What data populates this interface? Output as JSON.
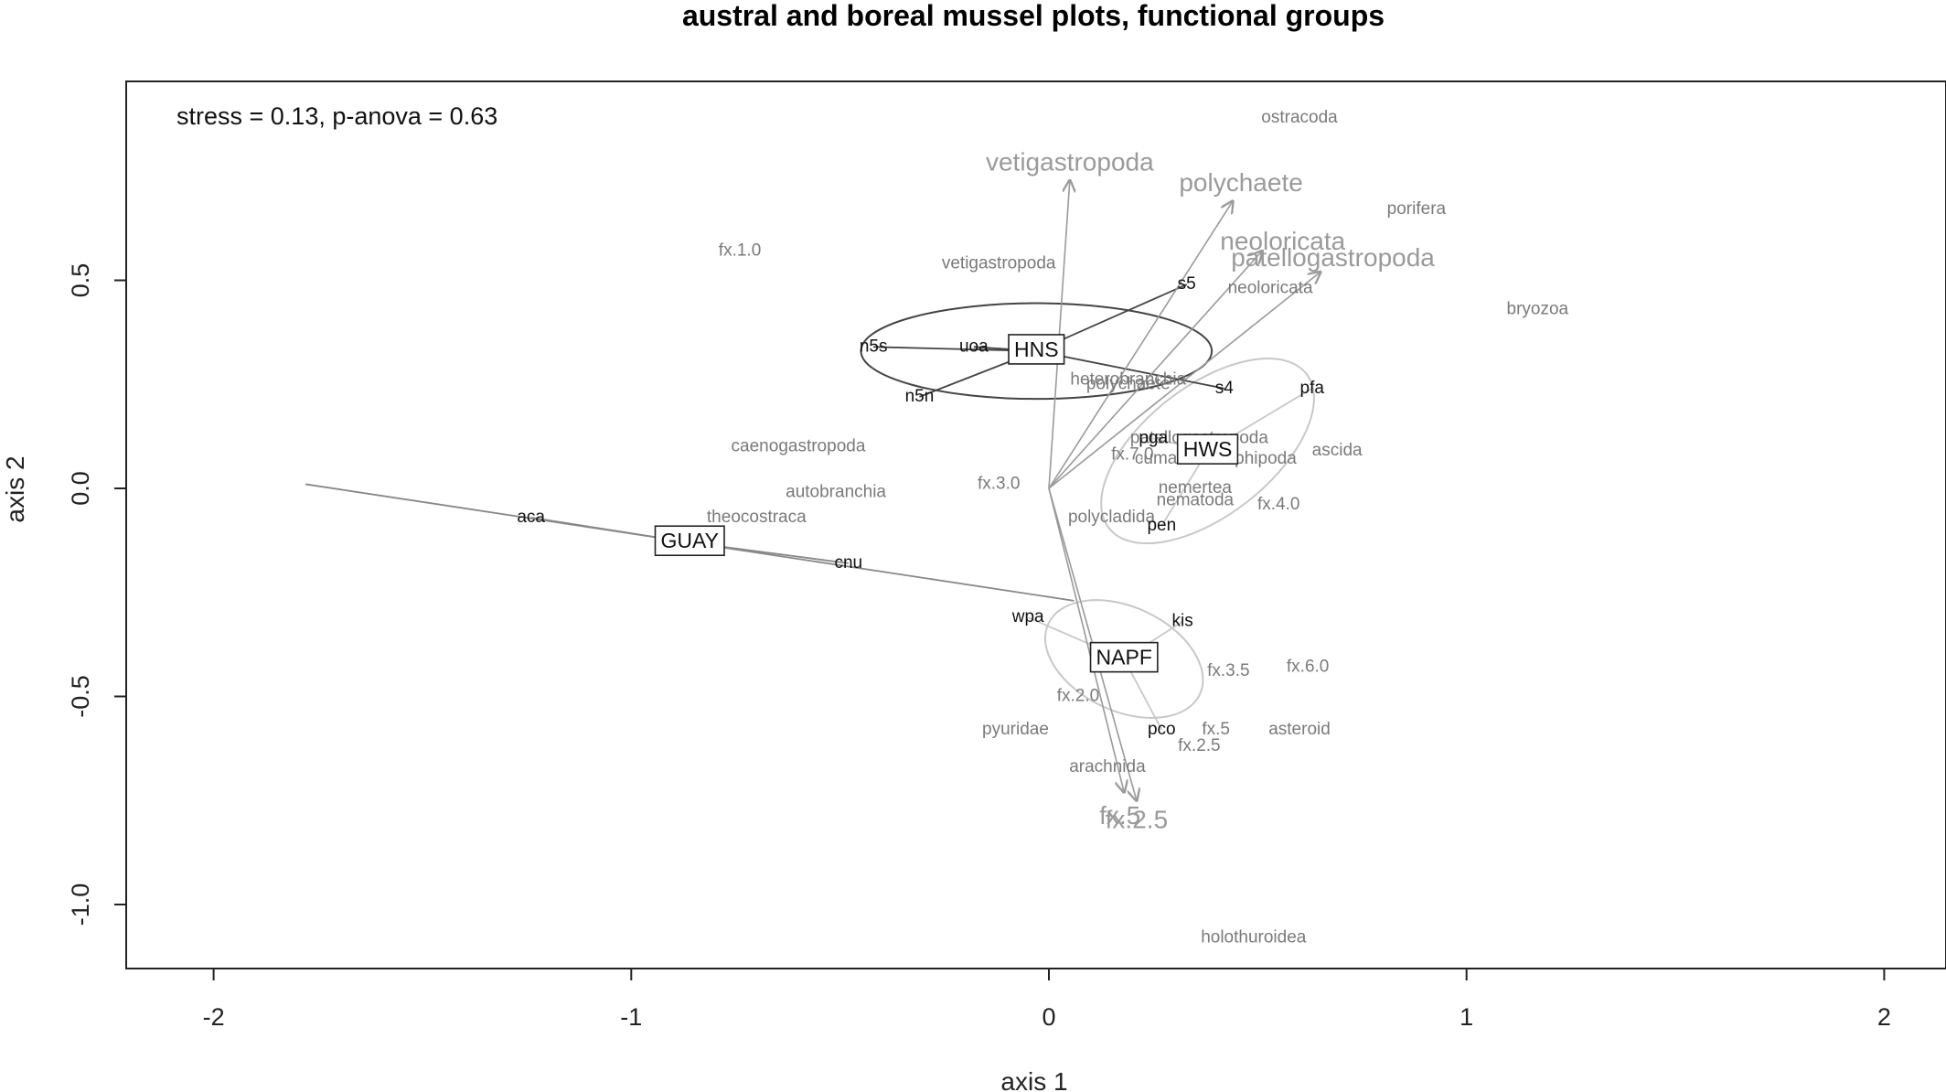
{
  "chart_data": {
    "type": "scatter",
    "title": "austral and boreal mussel plots, functional groups",
    "xlabel": "axis 1",
    "ylabel": "axis 2",
    "xlim": [
      -2.2,
      2.15
    ],
    "ylim": [
      -1.15,
      0.98
    ],
    "xticks": [
      -2,
      -1,
      0,
      1,
      2
    ],
    "yticks": [
      -1.0,
      -0.5,
      0.0,
      0.5
    ],
    "xtick_labels": [
      "-2",
      "-1",
      "0",
      "1",
      "2"
    ],
    "ytick_labels": [
      "-1.0",
      "-0.5",
      "0.0",
      "0.5"
    ],
    "annotation": "stress = 0.13, p-anova = 0.63",
    "grid": false,
    "species_points": [
      {
        "label": "ostracoda",
        "x": 0.6,
        "y": 0.89
      },
      {
        "label": "porifera",
        "x": 0.88,
        "y": 0.67
      },
      {
        "label": "bryozoa",
        "x": 1.17,
        "y": 0.43
      },
      {
        "label": "fx.1.0",
        "x": -0.74,
        "y": 0.57
      },
      {
        "label": "vetigastropoda",
        "x": -0.12,
        "y": 0.54
      },
      {
        "label": "neoloricata",
        "x": 0.53,
        "y": 0.48
      },
      {
        "label": "heterobranchia",
        "x": 0.19,
        "y": 0.26
      },
      {
        "label": "polychaete",
        "x": 0.19,
        "y": 0.25
      },
      {
        "label": "caenogastropoda",
        "x": -0.6,
        "y": 0.1
      },
      {
        "label": "patellogastropoda",
        "x": 0.36,
        "y": 0.12
      },
      {
        "label": "fx.7.0",
        "x": 0.2,
        "y": 0.08
      },
      {
        "label": "cumacea",
        "x": 0.29,
        "y": 0.07
      },
      {
        "label": "amphipoda",
        "x": 0.49,
        "y": 0.07
      },
      {
        "label": "ascida",
        "x": 0.69,
        "y": 0.09
      },
      {
        "label": "fx.3.0",
        "x": -0.12,
        "y": 0.01
      },
      {
        "label": "autobranchia",
        "x": -0.51,
        "y": -0.01
      },
      {
        "label": "theocostraca",
        "x": -0.7,
        "y": -0.07
      },
      {
        "label": "nemertea",
        "x": 0.35,
        "y": -0.0
      },
      {
        "label": "nematoda",
        "x": 0.35,
        "y": -0.03
      },
      {
        "label": "fx.4.0",
        "x": 0.55,
        "y": -0.04
      },
      {
        "label": "polycladida",
        "x": 0.15,
        "y": -0.07
      },
      {
        "label": "fx.3.5",
        "x": 0.43,
        "y": -0.44
      },
      {
        "label": "fx.6.0",
        "x": 0.62,
        "y": -0.43
      },
      {
        "label": "fx.2.0",
        "x": 0.07,
        "y": -0.5
      },
      {
        "label": "pyuridae",
        "x": -0.08,
        "y": -0.58
      },
      {
        "label": "fx.5",
        "x": 0.4,
        "y": -0.58
      },
      {
        "label": "asteroid",
        "x": 0.6,
        "y": -0.58
      },
      {
        "label": "fx.2.5",
        "x": 0.36,
        "y": -0.62
      },
      {
        "label": "arachnida",
        "x": 0.14,
        "y": -0.67
      },
      {
        "label": "holothuroidea",
        "x": 0.49,
        "y": -1.08
      }
    ],
    "site_points": [
      {
        "label": "s5",
        "x": 0.33,
        "y": 0.49
      },
      {
        "label": "n5s",
        "x": -0.42,
        "y": 0.34
      },
      {
        "label": "uoa",
        "x": -0.18,
        "y": 0.34
      },
      {
        "label": "n5n",
        "x": -0.31,
        "y": 0.22
      },
      {
        "label": "s4",
        "x": 0.42,
        "y": 0.24
      },
      {
        "label": "pfa",
        "x": 0.63,
        "y": 0.24
      },
      {
        "label": "pga",
        "x": 0.25,
        "y": 0.12
      },
      {
        "label": "aca",
        "x": -1.24,
        "y": -0.07
      },
      {
        "label": "pen",
        "x": 0.27,
        "y": -0.09
      },
      {
        "label": "cnu",
        "x": -0.48,
        "y": -0.18
      },
      {
        "label": "wpa",
        "x": -0.05,
        "y": -0.31
      },
      {
        "label": "kis",
        "x": 0.32,
        "y": -0.32
      },
      {
        "label": "pco",
        "x": 0.27,
        "y": -0.58
      }
    ],
    "groups": [
      {
        "label": "HNS",
        "centroid": [
          -0.03,
          0.33
        ],
        "color": "#444444",
        "members": [
          [
            0.33,
            0.49
          ],
          [
            -0.42,
            0.34
          ],
          [
            -0.18,
            0.34
          ],
          [
            -0.31,
            0.22
          ],
          [
            0.42,
            0.24
          ]
        ],
        "ellipse": {
          "rx": 0.42,
          "ry": 0.115,
          "angle": 0
        }
      },
      {
        "label": "HWS",
        "centroid": [
          0.38,
          0.09
        ],
        "color": "#c8c8c8",
        "members": [
          [
            0.63,
            0.24
          ],
          [
            0.25,
            0.12
          ],
          [
            0.27,
            -0.09
          ]
        ],
        "ellipse": {
          "rx": 0.3,
          "ry": 0.155,
          "angle": 38
        }
      },
      {
        "label": "GUAY",
        "centroid": [
          -0.86,
          -0.13
        ],
        "color": "#888888",
        "members": [
          [
            -1.24,
            -0.07
          ],
          [
            -0.48,
            -0.18
          ],
          [
            -1.78,
            0.01
          ],
          [
            0.06,
            -0.27
          ]
        ],
        "ellipse": null
      },
      {
        "label": "NAPF",
        "centroid": [
          0.18,
          -0.41
        ],
        "color": "#c8c8c8",
        "members": [
          [
            -0.05,
            -0.31
          ],
          [
            0.32,
            -0.32
          ],
          [
            0.27,
            -0.58
          ]
        ],
        "ellipse": {
          "rx": 0.2,
          "ry": 0.125,
          "angle": -25
        }
      }
    ],
    "vectors": [
      {
        "label": "vetigastropoda",
        "x": 0.05,
        "y": 0.74
      },
      {
        "label": "polychaete",
        "x": 0.44,
        "y": 0.69
      },
      {
        "label": "neoloricata",
        "x": 0.51,
        "y": 0.57
      },
      {
        "label": "patellogastropoda",
        "x": 0.65,
        "y": 0.52
      },
      {
        "label": "fx.5",
        "x": 0.18,
        "y": -0.73
      },
      {
        "label": "fx.2.5",
        "x": 0.21,
        "y": -0.75
      }
    ],
    "vector_label_positions": [
      {
        "label": "vetigastropoda",
        "x": 0.05,
        "y": 0.78
      },
      {
        "label": "polychaete",
        "x": 0.46,
        "y": 0.73
      },
      {
        "label": "neoloricata",
        "x": 0.56,
        "y": 0.59
      },
      {
        "label": "patellogastropoda",
        "x": 0.68,
        "y": 0.55
      },
      {
        "label": "fx.5",
        "x": 0.17,
        "y": -0.79
      },
      {
        "label": "fx.2.5",
        "x": 0.21,
        "y": -0.8
      }
    ]
  }
}
